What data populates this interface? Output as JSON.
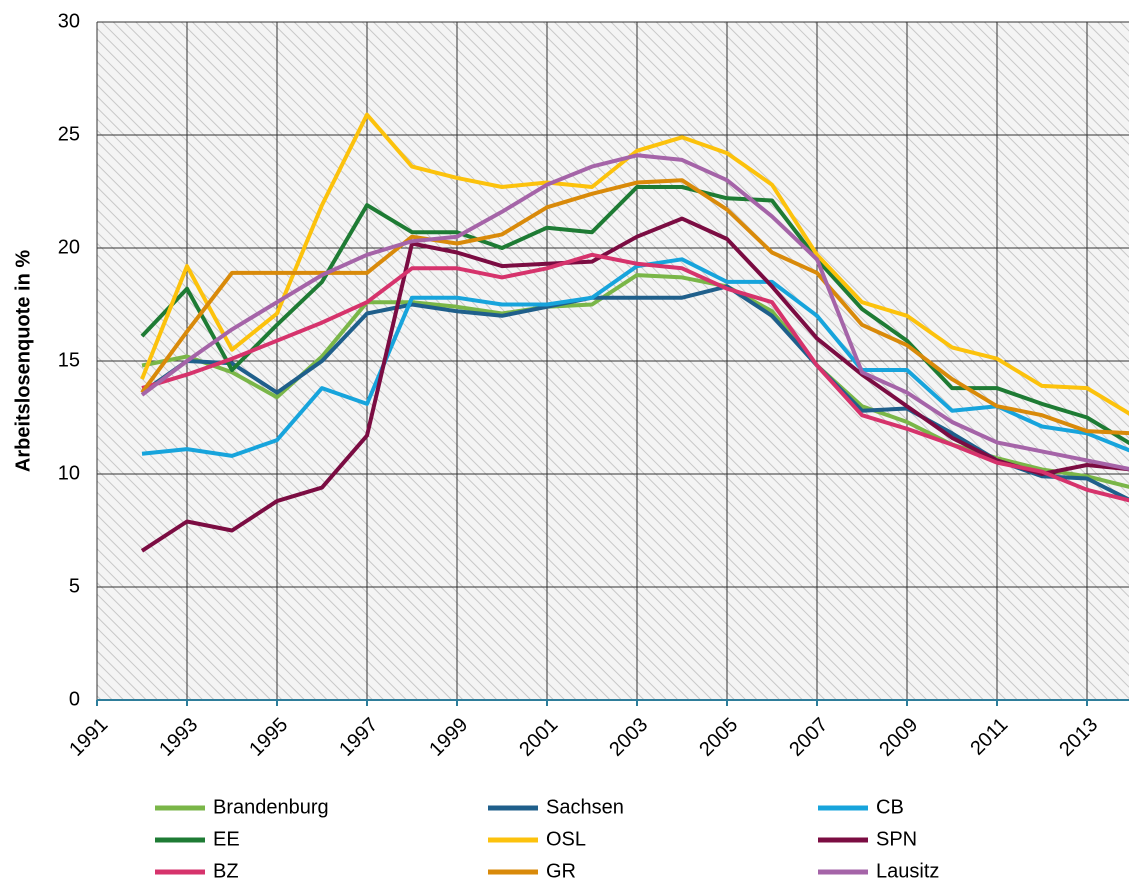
{
  "chart_data": {
    "type": "line",
    "ylabel": "Arbeitslosenquote  in %",
    "x": [
      1992,
      1993,
      1994,
      1995,
      1996,
      1997,
      1998,
      1999,
      2000,
      2001,
      2002,
      2003,
      2004,
      2005,
      2006,
      2007,
      2008,
      2009,
      2010,
      2011,
      2012,
      2013,
      2014
    ],
    "xlim": [
      1991,
      2014
    ],
    "xticks": [
      1991,
      1993,
      1995,
      1997,
      1999,
      2001,
      2003,
      2005,
      2007,
      2009,
      2011,
      2013
    ],
    "ylim": [
      0,
      30
    ],
    "yticks": [
      0,
      5,
      10,
      15,
      20,
      25,
      30
    ],
    "grid": true,
    "legend": "bottom",
    "series": [
      {
        "name": "Brandenburg",
        "color": "#7ab648",
        "values": [
          14.8,
          15.2,
          14.5,
          13.4,
          15.2,
          17.6,
          17.6,
          17.4,
          17.1,
          17.4,
          17.5,
          18.8,
          18.7,
          18.3,
          17.2,
          14.8,
          13.0,
          12.3,
          11.3,
          10.7,
          10.2,
          9.9,
          9.4
        ]
      },
      {
        "name": "Sachsen",
        "color": "#1f5f8b",
        "values": [
          13.6,
          15.0,
          14.9,
          13.6,
          15.0,
          17.1,
          17.5,
          17.2,
          17.0,
          17.4,
          17.8,
          17.8,
          17.8,
          18.3,
          17.0,
          14.8,
          12.8,
          12.9,
          11.8,
          10.6,
          9.9,
          9.8,
          8.8
        ]
      },
      {
        "name": "CB",
        "color": "#17a4dc",
        "values": [
          10.9,
          11.1,
          10.8,
          11.5,
          13.8,
          13.1,
          17.8,
          17.8,
          17.5,
          17.5,
          17.8,
          19.2,
          19.5,
          18.5,
          18.5,
          17.0,
          14.6,
          14.6,
          12.8,
          13.0,
          12.1,
          11.8,
          11.0
        ]
      },
      {
        "name": "EE",
        "color": "#1e7b34",
        "values": [
          16.1,
          18.2,
          14.6,
          16.6,
          18.5,
          21.9,
          20.7,
          20.7,
          20.0,
          20.9,
          20.7,
          22.7,
          22.7,
          22.2,
          22.1,
          19.5,
          17.3,
          15.9,
          13.8,
          13.8,
          13.1,
          12.5,
          11.3
        ]
      },
      {
        "name": "OSL",
        "color": "#fcc20c",
        "values": [
          14.2,
          19.2,
          15.5,
          17.1,
          21.9,
          25.9,
          23.6,
          23.1,
          22.7,
          22.9,
          22.7,
          24.3,
          24.9,
          24.2,
          22.8,
          19.7,
          17.6,
          17.0,
          15.6,
          15.1,
          13.9,
          13.8,
          12.6
        ]
      },
      {
        "name": "SPN",
        "color": "#7b0c42",
        "values": [
          6.6,
          7.9,
          7.5,
          8.8,
          9.4,
          11.7,
          20.2,
          19.8,
          19.2,
          19.3,
          19.4,
          20.5,
          21.3,
          20.4,
          18.3,
          16.0,
          14.4,
          13.0,
          11.6,
          10.6,
          10.0,
          10.4,
          10.2
        ]
      },
      {
        "name": "BZ",
        "color": "#d6336c",
        "values": [
          13.8,
          14.4,
          15.1,
          15.9,
          16.7,
          17.6,
          19.1,
          19.1,
          18.7,
          19.1,
          19.7,
          19.3,
          19.1,
          18.2,
          17.6,
          14.8,
          12.6,
          12.0,
          11.3,
          10.5,
          10.1,
          9.3,
          8.8
        ]
      },
      {
        "name": "GR",
        "color": "#d98a0a",
        "values": [
          13.6,
          16.3,
          18.9,
          18.9,
          18.9,
          18.9,
          20.5,
          20.2,
          20.6,
          21.8,
          22.4,
          22.9,
          23.0,
          21.7,
          19.8,
          18.9,
          16.6,
          15.7,
          14.2,
          13.0,
          12.6,
          11.9,
          11.8
        ]
      },
      {
        "name": "Lausitz",
        "color": "#a564a8",
        "values": [
          13.5,
          15.0,
          16.4,
          17.6,
          18.8,
          19.7,
          20.3,
          20.5,
          21.6,
          22.8,
          23.6,
          24.1,
          23.9,
          23.0,
          21.4,
          19.5,
          14.5,
          13.6,
          12.3,
          11.4,
          11.0,
          10.6,
          10.2
        ]
      }
    ]
  }
}
